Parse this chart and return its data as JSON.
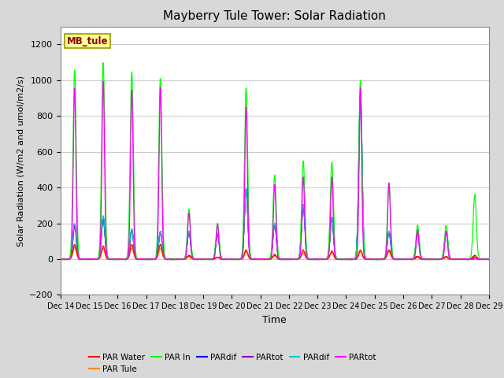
{
  "title": "Mayberry Tule Tower: Solar Radiation",
  "xlabel": "Time",
  "ylabel": "Solar Radiation (W/m2 and umol/m2/s)",
  "ylim": [
    -200,
    1300
  ],
  "yticks": [
    -200,
    0,
    200,
    400,
    600,
    800,
    1000,
    1200
  ],
  "xtick_labels": [
    "Dec 14",
    "Dec 15",
    "Dec 16",
    "Dec 17",
    "Dec 18",
    "Dec 19",
    "Dec 20",
    "Dec 21",
    "Dec 22",
    "Dec 23",
    "Dec 24",
    "Dec 25",
    "Dec 26",
    "Dec 27",
    "Dec 28",
    "Dec 29"
  ],
  "fig_bg_color": "#d8d8d8",
  "plot_bg_color": "#ffffff",
  "grid_color": "#cccccc",
  "series": [
    {
      "name": "PAR Water",
      "color": "#ff0000"
    },
    {
      "name": "PAR Tule",
      "color": "#ff8800"
    },
    {
      "name": "PAR In",
      "color": "#00ff00"
    },
    {
      "name": "PARdif",
      "color": "#0000ff"
    },
    {
      "name": "PARtot",
      "color": "#8800bb"
    },
    {
      "name": "PARdif",
      "color": "#00cccc"
    },
    {
      "name": "PARtot",
      "color": "#ff00ff"
    }
  ],
  "station_label": "MB_tule",
  "station_label_color": "#8B0000",
  "station_box_facecolor": "#ffff99",
  "station_box_edgecolor": "#999900",
  "n_days": 15,
  "n_per_day": 96,
  "day_peaks": {
    "green": [
      1060,
      1100,
      1050,
      1010,
      280,
      200,
      960,
      470,
      550,
      540,
      1000,
      430,
      190,
      190,
      360
    ],
    "magenta": [
      960,
      1000,
      950,
      960,
      260,
      195,
      850,
      420,
      460,
      460,
      960,
      425,
      165,
      160,
      5
    ],
    "cyan": [
      200,
      240,
      170,
      155,
      155,
      145,
      395,
      200,
      305,
      235,
      930,
      155,
      145,
      155,
      5
    ],
    "blue": [
      195,
      235,
      168,
      153,
      153,
      143,
      393,
      198,
      303,
      233,
      928,
      153,
      143,
      153,
      5
    ],
    "purple": [
      185,
      225,
      165,
      150,
      150,
      140,
      390,
      193,
      298,
      228,
      925,
      150,
      140,
      150,
      5
    ],
    "red": [
      80,
      70,
      80,
      80,
      20,
      10,
      50,
      25,
      50,
      45,
      50,
      50,
      15,
      15,
      20
    ],
    "orange": [
      65,
      60,
      60,
      60,
      15,
      10,
      40,
      20,
      35,
      35,
      40,
      40,
      10,
      10,
      15
    ]
  },
  "peak_widths": {
    "green": 0.055,
    "magenta": 0.045,
    "cyan": 0.06,
    "blue": 0.058,
    "purple": 0.057,
    "red": 0.06,
    "orange": 0.058
  }
}
